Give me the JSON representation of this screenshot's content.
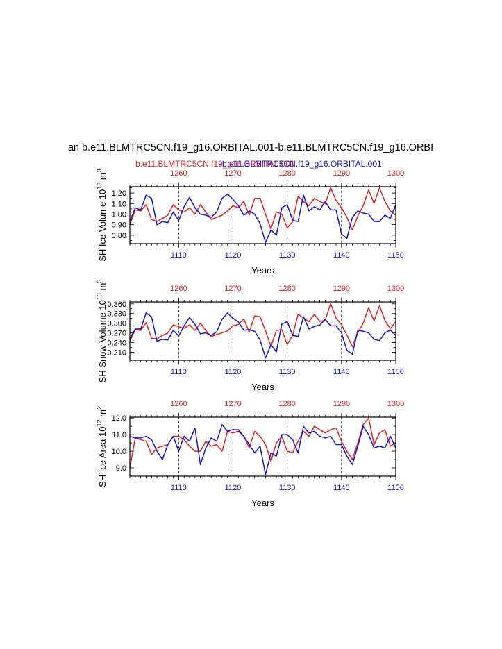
{
  "title": "an b.e11.BLMTRC5CN.f19_g16.ORBITAL.001-b.e11.BLMTRC5CN.f19_g16.ORBI",
  "legend": {
    "red_label": "b.e11.BLMTRC5CN.f19_g16.ORBITAL.001",
    "blue_label": "b.e11.BLMTRC5CN.f19_g16.ORBITAL.001",
    "red_color": "#e8201f",
    "blue_color": "#1313d6"
  },
  "colors": {
    "red": "#e8201f",
    "blue": "#1313d6",
    "axis": "#000000",
    "grid": "#000000"
  },
  "chart_data": [
    {
      "type": "line",
      "ylabel_main": "SH Ice Volume 10",
      "ylabel_exp": "13",
      "ylabel_unit": " m",
      "ylabel_unit_exp": "3",
      "xlabel": "Years",
      "xlim_bottom": [
        1101,
        1150
      ],
      "xlim_top": [
        1251,
        1300
      ],
      "xticks_bottom": [
        "1110",
        "1120",
        "1130",
        "1140",
        "1150"
      ],
      "xticks_top": [
        "1260",
        "1270",
        "1280",
        "1290",
        "1300"
      ],
      "ylim": [
        0.72,
        1.26
      ],
      "yticks": [
        "0.80",
        "0.90",
        "1.00",
        "1.10",
        "1.20"
      ],
      "ytick_values": [
        0.8,
        0.9,
        1.0,
        1.1,
        1.2
      ],
      "series": [
        {
          "name": "red",
          "values": [
            0.9,
            1.04,
            1.03,
            1.09,
            0.95,
            0.93,
            0.96,
            0.99,
            1.09,
            1.04,
            1.02,
            1.06,
            1.0,
            1.09,
            1.02,
            0.95,
            0.97,
            0.99,
            1.03,
            1.08,
            1.06,
            1.12,
            0.99,
            1.15,
            1.15,
            1.0,
            0.86,
            1.02,
            1.0,
            0.87,
            0.93,
            1.17,
            1.12,
            1.08,
            1.15,
            1.12,
            1.1,
            1.25,
            1.13,
            1.06,
            0.97,
            0.85,
            0.98,
            1.08,
            1.23,
            1.1,
            1.25,
            1.12,
            1.03,
            0.99
          ]
        },
        {
          "name": "blue",
          "values": [
            0.93,
            1.06,
            1.04,
            1.18,
            1.15,
            0.9,
            0.93,
            0.92,
            1.02,
            0.94,
            1.07,
            1.16,
            1.06,
            1.0,
            0.99,
            0.97,
            1.02,
            1.15,
            1.19,
            1.14,
            1.08,
            0.99,
            1.03,
            1.0,
            0.91,
            0.73,
            0.85,
            0.8,
            1.06,
            1.09,
            0.94,
            0.93,
            1.18,
            1.03,
            1.07,
            1.04,
            1.12,
            1.04,
            1.04,
            0.81,
            0.77,
            0.97,
            1.03,
            1.01,
            1.0,
            0.93,
            0.93,
            0.99,
            0.96,
            1.09
          ]
        }
      ]
    },
    {
      "type": "line",
      "ylabel_main": "SH Snow Volume 10",
      "ylabel_exp": "13",
      "ylabel_unit": " m",
      "ylabel_unit_exp": "3",
      "xlabel": "Years",
      "xlim_bottom": [
        1101,
        1150
      ],
      "xlim_top": [
        1251,
        1300
      ],
      "xticks_bottom": [
        "1110",
        "1120",
        "1130",
        "1140",
        "1150"
      ],
      "xticks_top": [
        "1260",
        "1270",
        "1280",
        "1290",
        "1300"
      ],
      "ylim": [
        0.185,
        0.366
      ],
      "yticks": [
        "0.210",
        "0.240",
        "0.270",
        "0.300",
        "0.330",
        "0.360"
      ],
      "ytick_values": [
        0.21,
        0.24,
        0.27,
        0.3,
        0.33,
        0.36
      ],
      "series": [
        {
          "name": "red",
          "values": [
            0.245,
            0.28,
            0.278,
            0.302,
            0.253,
            0.252,
            0.262,
            0.27,
            0.295,
            0.289,
            0.284,
            0.295,
            0.278,
            0.3,
            0.277,
            0.258,
            0.265,
            0.27,
            0.276,
            0.292,
            0.296,
            0.314,
            0.272,
            0.323,
            0.32,
            0.276,
            0.228,
            0.278,
            0.28,
            0.234,
            0.262,
            0.328,
            0.316,
            0.305,
            0.327,
            0.306,
            0.309,
            0.361,
            0.316,
            0.295,
            0.263,
            0.228,
            0.27,
            0.3,
            0.348,
            0.307,
            0.355,
            0.309,
            0.283,
            0.305
          ]
        },
        {
          "name": "blue",
          "values": [
            0.252,
            0.282,
            0.282,
            0.332,
            0.32,
            0.244,
            0.25,
            0.248,
            0.278,
            0.26,
            0.292,
            0.318,
            0.296,
            0.267,
            0.27,
            0.262,
            0.273,
            0.312,
            0.332,
            0.315,
            0.304,
            0.278,
            0.28,
            0.275,
            0.248,
            0.192,
            0.233,
            0.211,
            0.297,
            0.305,
            0.262,
            0.259,
            0.32,
            0.282,
            0.29,
            0.294,
            0.312,
            0.292,
            0.292,
            0.27,
            0.216,
            0.204,
            0.278,
            0.275,
            0.27,
            0.25,
            0.246,
            0.27,
            0.279,
            0.262
          ]
        }
      ]
    },
    {
      "type": "line",
      "ylabel_main": "SH Ice Area 10",
      "ylabel_exp": "12",
      "ylabel_unit": " m",
      "ylabel_unit_exp": "2",
      "xlabel": "Years",
      "xlim_bottom": [
        1101,
        1150
      ],
      "xlim_top": [
        1251,
        1300
      ],
      "xticks_bottom": [
        "1110",
        "1120",
        "1130",
        "1140",
        "1150"
      ],
      "xticks_top": [
        "1260",
        "1270",
        "1280",
        "1290",
        "1300"
      ],
      "ylim": [
        8.5,
        12.05
      ],
      "yticks": [
        "9.0",
        "10.0",
        "11.0",
        "12.0"
      ],
      "ytick_values": [
        9.0,
        10.0,
        11.0,
        12.0
      ],
      "series": [
        {
          "name": "red",
          "values": [
            9.0,
            10.8,
            10.7,
            10.6,
            9.8,
            10.2,
            10.3,
            10.4,
            10.9,
            10.9,
            10.7,
            10.3,
            10.0,
            10.0,
            10.6,
            10.3,
            10.4,
            10.0,
            11.2,
            11.1,
            11.2,
            10.9,
            10.2,
            11.2,
            10.9,
            10.4,
            9.4,
            10.5,
            10.9,
            10.0,
            9.9,
            10.6,
            11.2,
            10.9,
            11.5,
            11.3,
            11.1,
            11.3,
            11.4,
            10.6,
            10.0,
            9.5,
            10.5,
            11.6,
            12.0,
            10.4,
            11.1,
            11.3,
            10.3,
            10.5
          ]
        },
        {
          "name": "blue",
          "values": [
            10.9,
            10.8,
            10.8,
            10.9,
            10.7,
            10.0,
            9.5,
            10.4,
            10.9,
            10.0,
            10.9,
            10.6,
            11.4,
            9.2,
            10.2,
            10.8,
            10.6,
            11.6,
            11.2,
            11.3,
            11.3,
            10.9,
            10.4,
            9.9,
            10.3,
            8.6,
            9.9,
            9.7,
            11.0,
            11.0,
            10.7,
            9.9,
            11.5,
            11.1,
            11.2,
            10.9,
            10.8,
            10.9,
            10.4,
            10.4,
            9.7,
            9.2,
            10.3,
            11.5,
            11.0,
            10.2,
            10.3,
            10.2,
            10.9,
            10.2
          ]
        }
      ]
    }
  ]
}
